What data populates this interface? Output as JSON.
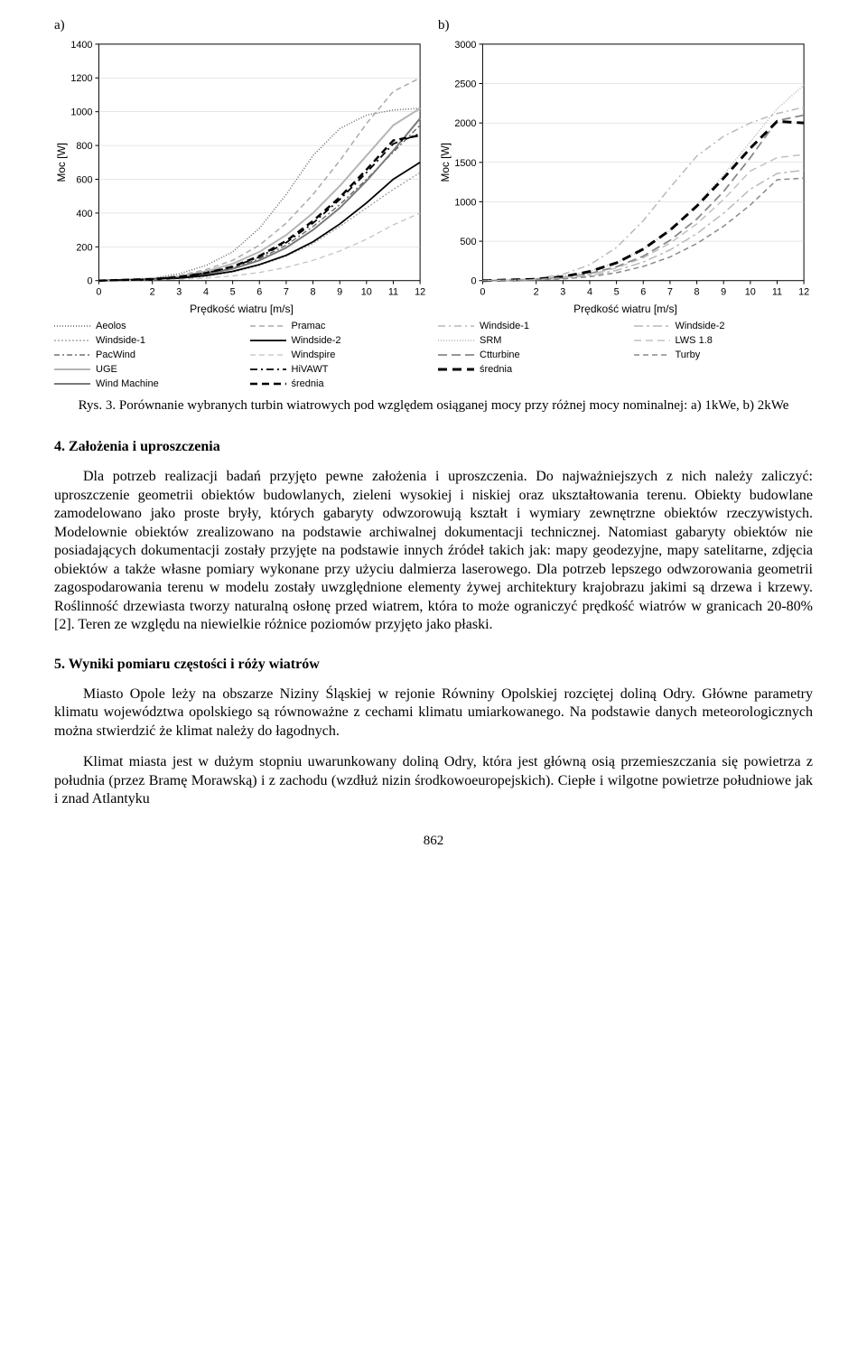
{
  "chart_a": {
    "panel_label": "a)",
    "type": "line",
    "xlabel": "Prędkość wiatru [m/s]",
    "ylabel": "Moc [W]",
    "xticks": [
      0,
      2,
      3,
      4,
      5,
      6,
      7,
      8,
      9,
      10,
      11,
      12
    ],
    "yticks": [
      0,
      200,
      400,
      600,
      800,
      1000,
      1200,
      1400
    ],
    "xlim": [
      0,
      12
    ],
    "ylim": [
      0,
      1400
    ],
    "background_color": "#ffffff",
    "grid_color": "#cccccc",
    "axis_color": "#000000",
    "series": [
      {
        "name": "Aeolos",
        "color": "#666666",
        "dash": "1,2",
        "width": 1.5,
        "x": [
          0,
          2,
          3,
          4,
          5,
          6,
          7,
          8,
          9,
          10,
          11,
          12
        ],
        "y": [
          0,
          15,
          40,
          90,
          170,
          310,
          510,
          740,
          900,
          980,
          1010,
          1020
        ]
      },
      {
        "name": "Windside-1",
        "color": "#999999",
        "dash": "2,2",
        "width": 1.2,
        "x": [
          0,
          2,
          3,
          4,
          5,
          6,
          7,
          8,
          9,
          10,
          11,
          12
        ],
        "y": [
          0,
          5,
          12,
          25,
          50,
          90,
          145,
          220,
          320,
          430,
          540,
          640
        ]
      },
      {
        "name": "PacWind",
        "color": "#555555",
        "dash": "6,3,2,3",
        "width": 1.2,
        "x": [
          0,
          2,
          3,
          4,
          5,
          6,
          7,
          8,
          9,
          10,
          11,
          12
        ],
        "y": [
          0,
          8,
          20,
          40,
          75,
          130,
          210,
          320,
          450,
          600,
          760,
          920
        ]
      },
      {
        "name": "UGE",
        "color": "#b5b5b5",
        "dash": "",
        "width": 2,
        "x": [
          0,
          2,
          3,
          4,
          5,
          6,
          7,
          8,
          9,
          10,
          11,
          12
        ],
        "y": [
          0,
          10,
          25,
          55,
          100,
          170,
          270,
          400,
          560,
          740,
          920,
          1020
        ]
      },
      {
        "name": "Wind Machine",
        "color": "#7a7a7a",
        "dash": "",
        "width": 2,
        "x": [
          0,
          2,
          3,
          4,
          5,
          6,
          7,
          8,
          9,
          10,
          11,
          12
        ],
        "y": [
          0,
          8,
          18,
          38,
          70,
          120,
          195,
          300,
          430,
          590,
          770,
          960
        ]
      },
      {
        "name": "Pramac",
        "color": "#aaaaaa",
        "dash": "6,4",
        "width": 1.5,
        "x": [
          0,
          2,
          3,
          4,
          5,
          6,
          7,
          8,
          9,
          10,
          11,
          12
        ],
        "y": [
          0,
          12,
          30,
          65,
          120,
          210,
          340,
          510,
          710,
          930,
          1120,
          1200
        ]
      },
      {
        "name": "Windside-2",
        "color": "#000000",
        "dash": "",
        "width": 1.8,
        "x": [
          0,
          2,
          3,
          4,
          5,
          6,
          7,
          8,
          9,
          10,
          11,
          12
        ],
        "y": [
          0,
          6,
          15,
          30,
          55,
          95,
          150,
          230,
          335,
          460,
          600,
          700
        ]
      },
      {
        "name": "Windspire",
        "color": "#c0c0c0",
        "dash": "6,4",
        "width": 1.2,
        "x": [
          0,
          2,
          3,
          4,
          5,
          6,
          7,
          8,
          9,
          10,
          11,
          12
        ],
        "y": [
          0,
          4,
          8,
          15,
          28,
          48,
          78,
          120,
          175,
          245,
          330,
          400
        ]
      },
      {
        "name": "HiVAWT",
        "color": "#000000",
        "dash": "8,4,2,4",
        "width": 1.8,
        "x": [
          0,
          2,
          3,
          4,
          5,
          6,
          7,
          8,
          9,
          10,
          11,
          12
        ],
        "y": [
          0,
          9,
          22,
          45,
          82,
          140,
          225,
          340,
          480,
          640,
          810,
          870
        ]
      },
      {
        "name": "średnia",
        "color": "#000000",
        "dash": "8,5",
        "width": 2.5,
        "x": [
          0,
          2,
          3,
          4,
          5,
          6,
          7,
          8,
          9,
          10,
          11,
          12
        ],
        "y": [
          0,
          9,
          21,
          45,
          83,
          146,
          235,
          353,
          493,
          657,
          830,
          860
        ]
      }
    ],
    "legend_left": [
      "Aeolos",
      "Windside-1",
      "PacWind",
      "UGE",
      "Wind Machine"
    ],
    "legend_right": [
      "Pramac",
      "Windside-2",
      "Windspire",
      "HiVAWT",
      "średnia"
    ],
    "legend_styles": {
      "Aeolos": {
        "color": "#666666",
        "dash": "1,2",
        "width": 1.5
      },
      "Windside-1": {
        "color": "#999999",
        "dash": "2,2",
        "width": 1.2
      },
      "PacWind": {
        "color": "#555555",
        "dash": "6,3,2,3",
        "width": 1.2
      },
      "UGE": {
        "color": "#b5b5b5",
        "dash": "",
        "width": 2
      },
      "Wind Machine": {
        "color": "#7a7a7a",
        "dash": "",
        "width": 2
      },
      "Pramac": {
        "color": "#aaaaaa",
        "dash": "6,4",
        "width": 1.5
      },
      "Windside-2": {
        "color": "#000000",
        "dash": "",
        "width": 1.8
      },
      "Windspire": {
        "color": "#c0c0c0",
        "dash": "6,4",
        "width": 1.2
      },
      "HiVAWT": {
        "color": "#000000",
        "dash": "8,4,2,4",
        "width": 1.8
      },
      "średnia": {
        "color": "#000000",
        "dash": "8,5",
        "width": 2.5
      }
    }
  },
  "chart_b": {
    "panel_label": "b)",
    "type": "line",
    "xlabel": "Prędkość wiatru [m/s]",
    "ylabel": "Moc [W]",
    "xticks": [
      0,
      2,
      3,
      4,
      5,
      6,
      7,
      8,
      9,
      10,
      11,
      12
    ],
    "yticks": [
      0,
      500,
      1000,
      1500,
      2000,
      2500,
      3000
    ],
    "xlim": [
      0,
      12
    ],
    "ylim": [
      0,
      3000
    ],
    "background_color": "#ffffff",
    "grid_color": "#cccccc",
    "axis_color": "#000000",
    "series": [
      {
        "name": "Windside-1",
        "color": "#b8b8b8",
        "dash": "8,4,2,4",
        "width": 1.5,
        "x": [
          0,
          2,
          3,
          4,
          5,
          6,
          7,
          8,
          9,
          10,
          11,
          12
        ],
        "y": [
          0,
          25,
          80,
          200,
          420,
          760,
          1180,
          1580,
          1830,
          2000,
          2120,
          2200
        ]
      },
      {
        "name": "SRM",
        "color": "#b0b0b0",
        "dash": "1,2",
        "width": 1.5,
        "x": [
          0,
          2,
          3,
          4,
          5,
          6,
          7,
          8,
          9,
          10,
          11,
          12
        ],
        "y": [
          0,
          20,
          55,
          120,
          230,
          400,
          640,
          960,
          1340,
          1760,
          2180,
          2480
        ]
      },
      {
        "name": "Ctturbine",
        "color": "#888888",
        "dash": "10,5",
        "width": 1.8,
        "x": [
          0,
          2,
          3,
          4,
          5,
          6,
          7,
          8,
          9,
          10,
          11,
          12
        ],
        "y": [
          0,
          15,
          40,
          90,
          175,
          310,
          510,
          780,
          1130,
          1560,
          2030,
          2100
        ]
      },
      {
        "name": "średnia",
        "color": "#000000",
        "dash": "10,6",
        "width": 3,
        "x": [
          0,
          2,
          3,
          4,
          5,
          6,
          7,
          8,
          9,
          10,
          11,
          12
        ],
        "y": [
          0,
          18,
          50,
          115,
          225,
          400,
          640,
          945,
          1300,
          1680,
          2020,
          2000
        ]
      },
      {
        "name": "Windside-2",
        "color": "#b8b8b8",
        "dash": "10,4,3,4",
        "width": 1.5,
        "x": [
          0,
          2,
          3,
          4,
          5,
          6,
          7,
          8,
          9,
          10,
          11,
          12
        ],
        "y": [
          0,
          10,
          28,
          65,
          130,
          235,
          390,
          595,
          855,
          1160,
          1360,
          1400
        ]
      },
      {
        "name": "LWS 1.8",
        "color": "#c0c0c0",
        "dash": "8,5",
        "width": 1.5,
        "x": [
          0,
          2,
          3,
          4,
          5,
          6,
          7,
          8,
          9,
          10,
          11,
          12
        ],
        "y": [
          0,
          12,
          35,
          80,
          160,
          290,
          475,
          720,
          1030,
          1390,
          1560,
          1600
        ]
      },
      {
        "name": "Turby",
        "color": "#888888",
        "dash": "6,4",
        "width": 1.5,
        "x": [
          0,
          2,
          3,
          4,
          5,
          6,
          7,
          8,
          9,
          10,
          11,
          12
        ],
        "y": [
          0,
          8,
          22,
          50,
          100,
          180,
          300,
          470,
          690,
          960,
          1280,
          1300
        ]
      }
    ],
    "legend_left": [
      "Windside-1",
      "SRM",
      "Ctturbine",
      "średnia"
    ],
    "legend_right": [
      "Windside-2",
      "LWS 1.8",
      "Turby"
    ],
    "legend_styles": {
      "Windside-1": {
        "color": "#b8b8b8",
        "dash": "8,4,2,4",
        "width": 1.5
      },
      "SRM": {
        "color": "#b0b0b0",
        "dash": "1,2",
        "width": 1.5
      },
      "Ctturbine": {
        "color": "#888888",
        "dash": "10,5",
        "width": 1.8
      },
      "średnia": {
        "color": "#000000",
        "dash": "10,6",
        "width": 3
      },
      "Windside-2": {
        "color": "#b8b8b8",
        "dash": "10,4,3,4",
        "width": 1.5
      },
      "LWS 1.8": {
        "color": "#c0c0c0",
        "dash": "8,5",
        "width": 1.5
      },
      "Turby": {
        "color": "#888888",
        "dash": "6,4",
        "width": 1.5
      }
    }
  },
  "caption": "Rys. 3. Porównanie wybranych turbin wiatrowych pod względem osiąganej mocy przy różnej mocy nominalnej: a) 1kWe, b) 2kWe",
  "section4": {
    "heading": "4. Założenia i uproszczenia",
    "para": "Dla potrzeb realizacji badań przyjęto pewne założenia i uproszczenia. Do najważniejszych z nich należy zaliczyć: uproszczenie geometrii obiektów budowlanych, zieleni wysokiej i niskiej oraz ukształtowania terenu. Obiekty budowlane zamodelowano jako proste bryły, których gabaryty odwzorowują kształt i wymiary zewnętrzne obiektów rzeczywistych. Modelownie obiektów zrealizowano na podstawie archiwalnej dokumentacji technicznej. Natomiast gabaryty obiektów nie posiadających dokumentacji zostały przyjęte na podstawie innych źródeł takich jak: mapy geodezyjne, mapy satelitarne, zdjęcia obiektów a także własne pomiary wykonane przy użyciu dalmierza laserowego. Dla potrzeb lepszego odwzorowania geometrii zagospodarowania terenu w modelu zostały uwzględnione elementy żywej architektury krajobrazu jakimi są drzewa i krzewy. Roślinność drzewiasta tworzy naturalną osłonę przed  wiatrem, która to może ograniczyć prędkość wiatrów w granicach 20-80% [2]. Teren ze względu na niewielkie różnice poziomów przyjęto jako płaski."
  },
  "section5": {
    "heading": "5. Wyniki pomiaru częstości i róży wiatrów",
    "para1": "Miasto Opole leży na obszarze Niziny Śląskiej w rejonie Równiny Opolskiej rozciętej doliną Odry. Główne parametry klimatu województwa opolskiego są równoważne z cechami klimatu umiarkowanego. Na podstawie danych meteorologicznych można stwierdzić że klimat należy do łagodnych.",
    "para2": "Klimat miasta jest w dużym stopniu uwarunkowany doliną Odry, która jest główną osią przemieszczania się powietrza z południa (przez Bramę Morawską) i z zachodu (wzdłuż nizin środkowoeuropejskich). Ciepłe i wilgotne powietrze południowe jak i znad Atlantyku"
  },
  "page_number": "862"
}
